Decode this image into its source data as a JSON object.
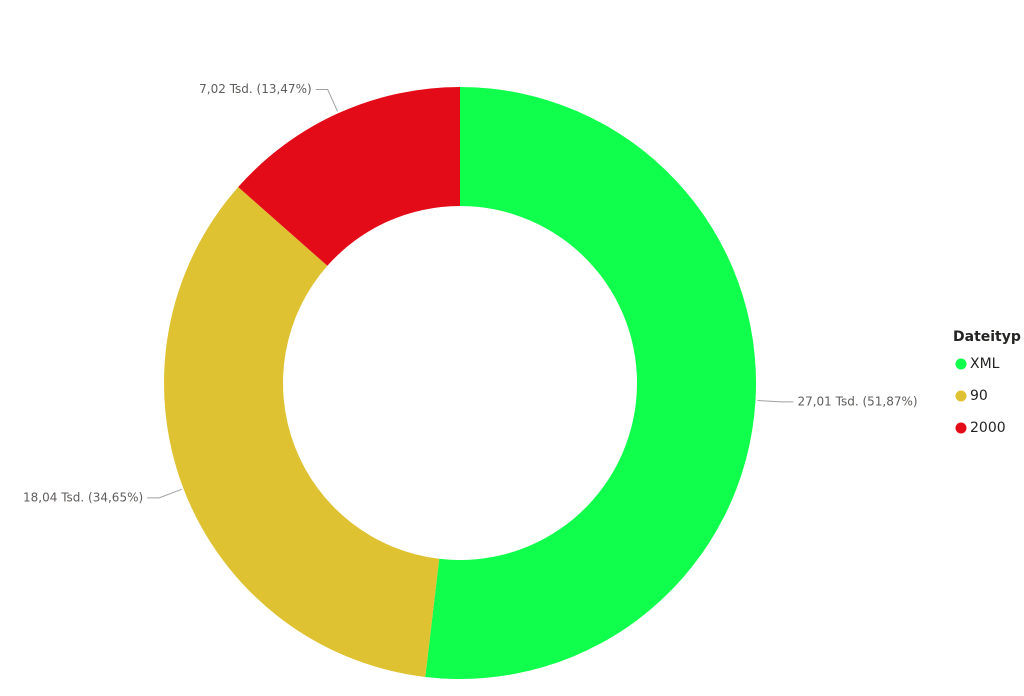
{
  "chart_data": {
    "type": "donut",
    "legend_title": "Dateityp",
    "legend": "right",
    "series": [
      {
        "name": "XML",
        "color": "#10ff4c",
        "values": [
          27.01
        ],
        "value_labels": [
          "27,01 Tsd. (51,87%)"
        ]
      },
      {
        "name": "90",
        "color": "#dfc232",
        "values": [
          18.04
        ],
        "value_labels": [
          "18,04 Tsd. (34,65%)"
        ]
      },
      {
        "name": "2000",
        "color": "#e30b17",
        "values": [
          7.02
        ],
        "value_labels": [
          "7,02 Tsd. (13,47%)"
        ]
      }
    ]
  }
}
